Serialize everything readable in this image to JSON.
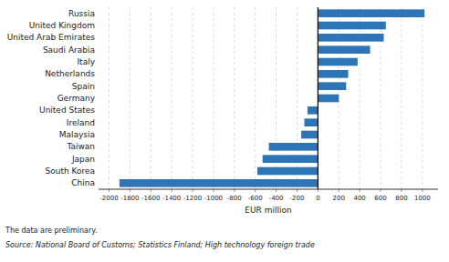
{
  "chart_data": {
    "type": "bar",
    "orientation": "horizontal",
    "categories": [
      "Russia",
      "United Kingdom",
      "United Arab Emirates",
      "Saudi Arabia",
      "Italy",
      "Netherlands",
      "Spain",
      "Germany",
      "United States",
      "Ireland",
      "Malaysia",
      "Taiwan",
      "Japan",
      "South Korea",
      "China"
    ],
    "values": [
      1020,
      650,
      630,
      500,
      380,
      290,
      270,
      200,
      -100,
      -130,
      -160,
      -470,
      -530,
      -580,
      -1900
    ],
    "color": "#2e75b6",
    "xlabel": "EUR million",
    "xlim": [
      -2100,
      1150
    ],
    "xticks": [
      -2000,
      -1800,
      -1600,
      -1400,
      -1200,
      -1000,
      -800,
      -600,
      -400,
      -200,
      0,
      200,
      400,
      600,
      800,
      1000
    ],
    "grid": true,
    "annotations": [
      "The data are preliminary.",
      "Source: National Board of Customs; Statistics Finland; High technology foreign trade"
    ]
  }
}
